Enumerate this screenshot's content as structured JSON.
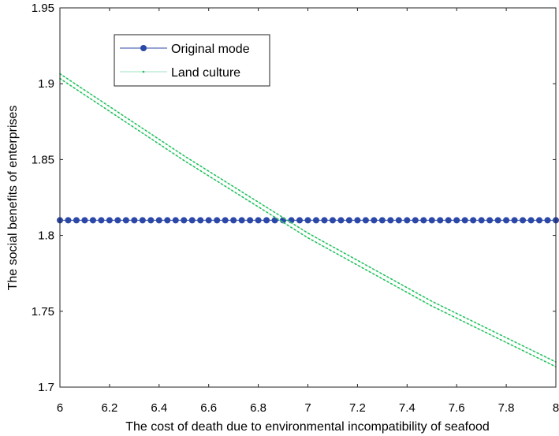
{
  "chart_data": {
    "type": "line",
    "title": "",
    "xlabel": "The cost of death due to environmental incompatibility of seafood",
    "ylabel": "The social benefits of enterprises",
    "xlim": [
      6,
      8
    ],
    "ylim": [
      1.7,
      1.95
    ],
    "x_ticks": [
      6,
      6.2,
      6.4,
      6.6,
      6.8,
      7,
      7.2,
      7.4,
      7.6,
      7.8,
      8
    ],
    "x_tick_labels": [
      "6",
      "6.2",
      "6.4",
      "6.6",
      "6.8",
      "7",
      "7.2",
      "7.4",
      "7.6",
      "7.8",
      "8"
    ],
    "y_ticks": [
      1.7,
      1.75,
      1.8,
      1.85,
      1.9,
      1.95
    ],
    "y_tick_labels": [
      "1.7",
      "1.75",
      "1.8",
      "1.85",
      "1.9",
      "1.95"
    ],
    "grid": false,
    "legend_position": "top-left",
    "series": [
      {
        "name": "Original mode",
        "color": "#2b48a8",
        "marker": "circle",
        "x_start": 6,
        "x_end": 8,
        "n_points": 61,
        "y": 1.81
      },
      {
        "name": "Land culture",
        "color": "#1fbf5a",
        "marker": "dot",
        "x": [
          6,
          6.5,
          7,
          7.5,
          8
        ],
        "y": [
          1.905,
          1.851,
          1.8,
          1.755,
          1.715
        ]
      }
    ]
  }
}
